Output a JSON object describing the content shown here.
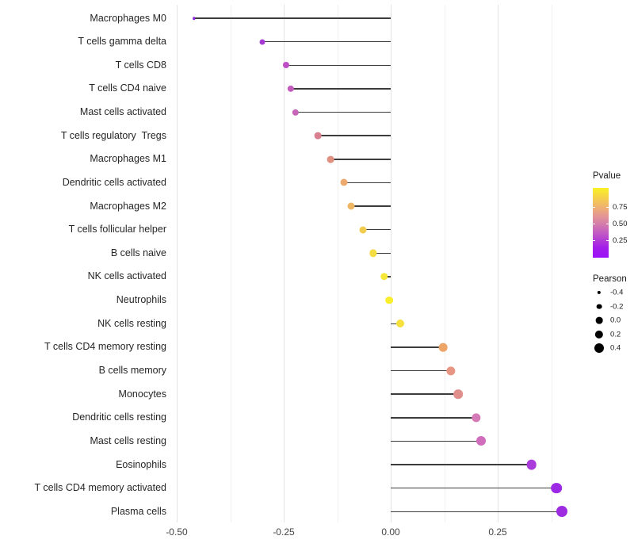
{
  "chart_data": {
    "type": "lollipop",
    "title": "",
    "xlabel": "",
    "ylabel": "",
    "grid": "vertical-only",
    "x_axis": {
      "range": [
        -0.506,
        0.443
      ],
      "major_ticks": [
        -0.5,
        -0.25,
        0.0,
        0.25
      ],
      "major_tick_labels": [
        "-0.50",
        "-0.25",
        "0.00",
        "0.25"
      ],
      "minor_ticks": [
        -0.375,
        -0.125,
        0.125,
        0.375
      ]
    },
    "points": [
      {
        "label": "Macrophages M0",
        "pearson": -0.46,
        "color": "#8E1FE0",
        "size": 3.5
      },
      {
        "label": "T cells gamma delta",
        "pearson": -0.3,
        "color": "#A53BD3",
        "size": 7.0
      },
      {
        "label": "T cells CD8",
        "pearson": -0.245,
        "color": "#BD4EC5",
        "size": 8.0
      },
      {
        "label": "T cells CD4 naive",
        "pearson": -0.233,
        "color": "#C45CBE",
        "size": 8.3
      },
      {
        "label": "Mast cells activated",
        "pearson": -0.223,
        "color": "#C765B8",
        "size": 8.3
      },
      {
        "label": "T cells regulatory  Tregs",
        "pearson": -0.17,
        "color": "#D8808F",
        "size": 8.7
      },
      {
        "label": "Macrophages M1",
        "pearson": -0.14,
        "color": "#DF9080",
        "size": 8.7
      },
      {
        "label": "Dendritic cells activated",
        "pearson": -0.11,
        "color": "#ECAA6E",
        "size": 9.0
      },
      {
        "label": "Macrophages M2",
        "pearson": -0.092,
        "color": "#EFB663",
        "size": 9.0
      },
      {
        "label": "T cells follicular helper",
        "pearson": -0.065,
        "color": "#F2CC4F",
        "size": 9.0
      },
      {
        "label": "B cells naive",
        "pearson": -0.041,
        "color": "#F4DC41",
        "size": 9.3
      },
      {
        "label": "NK cells activated",
        "pearson": -0.015,
        "color": "#F6E838",
        "size": 9.5
      },
      {
        "label": "Neutrophils",
        "pearson": -0.003,
        "color": "#F9EE2C",
        "size": 9.7
      },
      {
        "label": "NK cells resting",
        "pearson": 0.022,
        "color": "#F5E03C",
        "size": 10.0
      },
      {
        "label": "T cells CD4 memory resting",
        "pearson": 0.122,
        "color": "#EDA467",
        "size": 10.7
      },
      {
        "label": "B cells memory",
        "pearson": 0.141,
        "color": "#E89684",
        "size": 11.3
      },
      {
        "label": "Monocytes",
        "pearson": 0.158,
        "color": "#E08F8D",
        "size": 11.7
      },
      {
        "label": "Dendritic cells resting",
        "pearson": 0.2,
        "color": "#D47AB6",
        "size": 11.3
      },
      {
        "label": "Mast cells resting",
        "pearson": 0.212,
        "color": "#CF6CBB",
        "size": 12.0
      },
      {
        "label": "Eosinophils",
        "pearson": 0.329,
        "color": "#AB3CDC",
        "size": 12.7
      },
      {
        "label": "T cells CD4 memory activated",
        "pearson": 0.387,
        "color": "#9C27E4",
        "size": 13.7
      },
      {
        "label": "Plasma cells",
        "pearson": 0.4,
        "color": "#9D2BE0",
        "size": 14.0
      }
    ],
    "legend_position": "right"
  },
  "legends": {
    "pvalue": {
      "title": "Pvalue",
      "tick_labels": [
        "0.75",
        "0.50",
        "0.25"
      ],
      "tick_values": [
        0.75,
        0.5,
        0.25
      ],
      "gradient_top_to_bottom": [
        "#F9F125",
        "#F5D04B",
        "#EFAF74",
        "#E0909A",
        "#CC6FB5",
        "#B847CF",
        "#A21DEA",
        "#9B0FF7"
      ]
    },
    "pearson": {
      "title": "Pearson",
      "entries": [
        {
          "label": "-0.4",
          "size": 4.3
        },
        {
          "label": "-0.2",
          "size": 6.7
        },
        {
          "label": "0.0",
          "size": 8.7
        },
        {
          "label": "0.2",
          "size": 10.3
        },
        {
          "label": "0.4",
          "size": 12.0
        }
      ]
    }
  },
  "colors": {
    "segment": "#3c3c3c",
    "grid_major": "#e3e3e3",
    "grid_minor": "#f1f1f1",
    "background": "#ffffff"
  }
}
